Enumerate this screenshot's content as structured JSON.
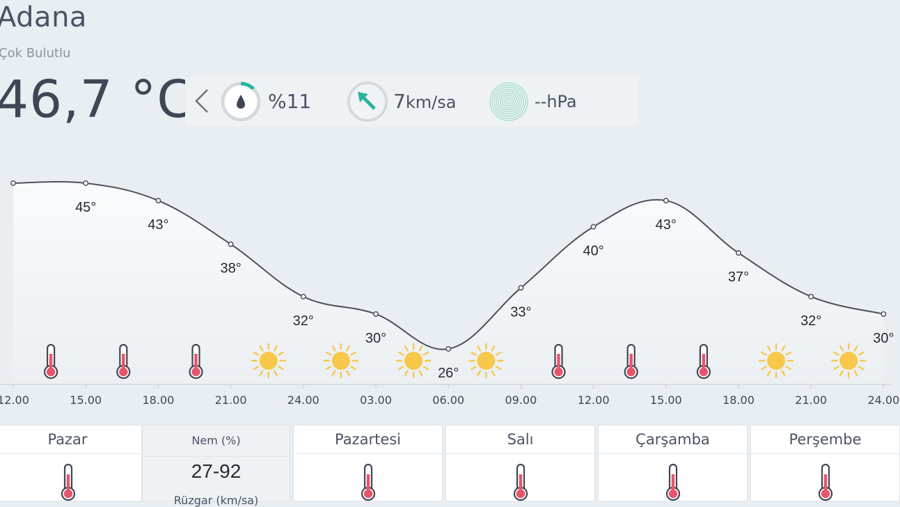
{
  "location": {
    "city": "Adana",
    "condition": "Çok Bulutlu",
    "temperature": "46,7 °C"
  },
  "stats": {
    "humidity": "%11",
    "wind_value": "7",
    "wind_unit": "km/sa",
    "pressure": "--hPa"
  },
  "icons": {
    "back": "chevron-left-icon",
    "humidity": "water-drop-icon",
    "wind": "wind-direction-arrow-icon",
    "pressure": "pressure-rings-icon",
    "hot": "thermometer-icon",
    "sunny": "sun-icon"
  },
  "colors": {
    "accent_teal": "#28b49c",
    "thermo_red": "#e8556a",
    "sun_yellow": "#f8c84a",
    "line": "#4b505c"
  },
  "chart_data": {
    "type": "line",
    "x": [
      "12.00",
      "15.00",
      "18.00",
      "21.00",
      "24.00",
      "03.00",
      "06.00",
      "09.00",
      "12.00",
      "15.00",
      "18.00",
      "21.00",
      "24.00"
    ],
    "values": [
      45,
      45,
      43,
      38,
      32,
      30,
      26,
      33,
      40,
      43,
      37,
      32,
      30
    ],
    "point_labels": [
      "",
      "45°",
      "43°",
      "38°",
      "32°",
      "30°",
      "26°",
      "33°",
      "40°",
      "43°",
      "37°",
      "32°",
      "30°"
    ],
    "icons": [
      "thermometer",
      "thermometer",
      "thermometer",
      "sun",
      "sun",
      "sun",
      "sun",
      "thermometer",
      "thermometer",
      "thermometer",
      "sun",
      "sun"
    ],
    "ylim": [
      26,
      45
    ]
  },
  "days": [
    {
      "name": "Pazar"
    },
    {
      "name": "Pazartesi"
    },
    {
      "name": "Salı"
    },
    {
      "name": "Çarşamba"
    },
    {
      "name": "Perşembe"
    }
  ],
  "detail": {
    "humidity_label": "Nem (%)",
    "humidity_range": "27-92",
    "wind_label": "Rüzgar (km/sa)"
  }
}
